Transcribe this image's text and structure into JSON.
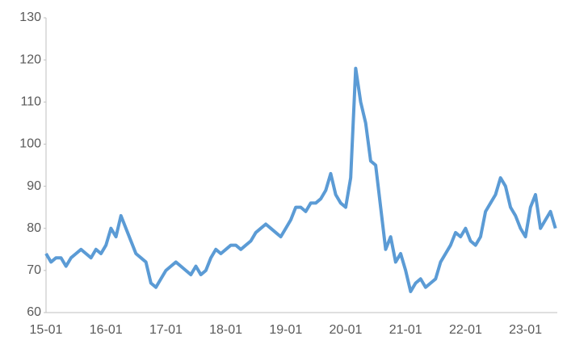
{
  "chart_data": {
    "type": "line",
    "categories": [
      "15-01",
      "15-02",
      "15-03",
      "15-04",
      "15-05",
      "15-06",
      "15-07",
      "15-08",
      "15-09",
      "15-10",
      "15-11",
      "15-12",
      "16-01",
      "16-02",
      "16-03",
      "16-04",
      "16-05",
      "16-06",
      "16-07",
      "16-08",
      "16-09",
      "16-10",
      "16-11",
      "16-12",
      "17-01",
      "17-02",
      "17-03",
      "17-04",
      "17-05",
      "17-06",
      "17-07",
      "17-08",
      "17-09",
      "17-10",
      "17-11",
      "17-12",
      "18-01",
      "18-02",
      "18-03",
      "18-04",
      "18-05",
      "18-06",
      "18-07",
      "18-08",
      "18-09",
      "18-10",
      "18-11",
      "18-12",
      "19-01",
      "19-02",
      "19-03",
      "19-04",
      "19-05",
      "19-06",
      "19-07",
      "19-08",
      "19-09",
      "19-10",
      "19-11",
      "19-12",
      "20-01",
      "20-02",
      "20-03",
      "20-04",
      "20-05",
      "20-06",
      "20-07",
      "20-08",
      "20-09",
      "20-10",
      "20-11",
      "20-12",
      "21-01",
      "21-02",
      "21-03",
      "21-04",
      "21-05",
      "21-06",
      "21-07",
      "21-08",
      "21-09",
      "21-10",
      "21-11",
      "21-12",
      "22-01",
      "22-02",
      "22-03",
      "22-04",
      "22-05",
      "22-06",
      "22-07",
      "22-08",
      "22-09",
      "22-10",
      "22-11",
      "22-12",
      "23-01",
      "23-02",
      "23-03",
      "23-04",
      "23-05",
      "23-06",
      "23-07"
    ],
    "series": [
      {
        "color": "#5b9bd5",
        "values": [
          74,
          72,
          73,
          73,
          71,
          73,
          74,
          75,
          74,
          73,
          75,
          74,
          76,
          80,
          78,
          83,
          80,
          77,
          74,
          73,
          72,
          67,
          66,
          68,
          70,
          71,
          72,
          71,
          70,
          69,
          71,
          69,
          70,
          73,
          75,
          74,
          75,
          76,
          76,
          75,
          76,
          77,
          79,
          80,
          81,
          80,
          79,
          78,
          80,
          82,
          85,
          85,
          84,
          86,
          86,
          87,
          89,
          93,
          88,
          86,
          85,
          92,
          118,
          110,
          105,
          96,
          95,
          85,
          75,
          78,
          72,
          74,
          70,
          65,
          67,
          68,
          66,
          67,
          68,
          72,
          74,
          76,
          79,
          78,
          80,
          77,
          76,
          78,
          84,
          86,
          88,
          92,
          90,
          85,
          83,
          80,
          78,
          85,
          88,
          80,
          82,
          84,
          80
        ]
      }
    ],
    "ylim": [
      60,
      130
    ],
    "yticks": [
      60,
      70,
      80,
      90,
      100,
      110,
      120,
      130
    ]
  }
}
